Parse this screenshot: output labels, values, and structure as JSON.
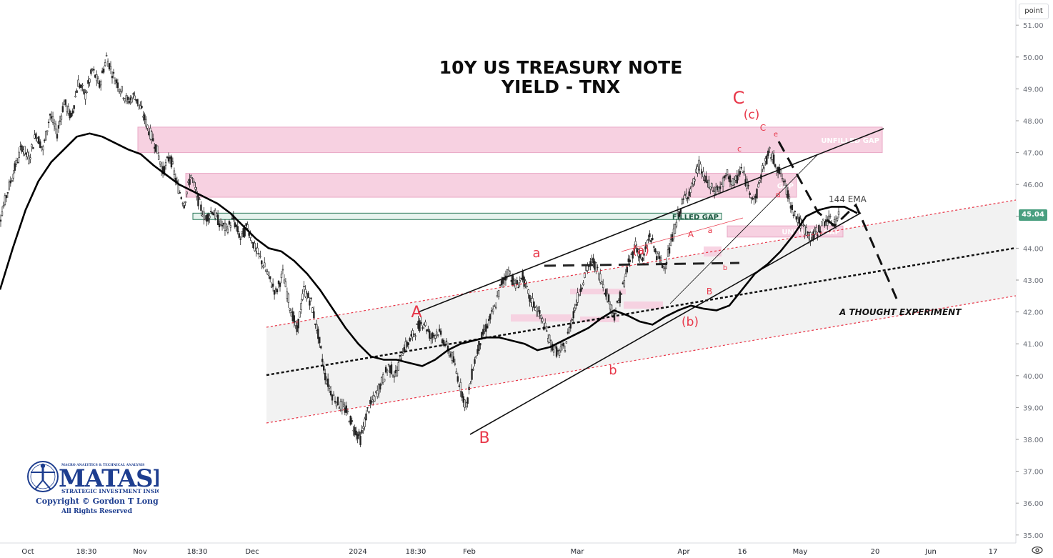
{
  "chart_data": {
    "type": "candlestick-line",
    "title_line1": "10Y US TREASURY NOTE",
    "title_line2": "YIELD - TNX",
    "yaxis": {
      "unit_label": "point",
      "ylim": [
        34.8,
        51.6
      ],
      "ticks": [
        "51.00",
        "50.00",
        "49.00",
        "48.00",
        "47.00",
        "46.00",
        "45.00",
        "44.00",
        "43.00",
        "42.00",
        "41.00",
        "40.00",
        "39.00",
        "38.00",
        "37.00",
        "36.00",
        "35.00"
      ],
      "last_value": "45.04"
    },
    "xaxis": {
      "ticks": [
        "Oct",
        "18:30",
        "Nov",
        "18:30",
        "Dec",
        "2024",
        "18:30",
        "Feb",
        "Mar",
        "Apr",
        "16",
        "May",
        "20",
        "Jun",
        "17"
      ]
    },
    "zones": [
      {
        "kind": "pink",
        "from": 47.0,
        "to": 47.8,
        "label": "UNFILLED GAP"
      },
      {
        "kind": "pink",
        "from": 45.6,
        "to": 46.35,
        "label": "GAP"
      },
      {
        "kind": "green",
        "from": 44.9,
        "to": 45.1,
        "label": "FILLED GAP"
      },
      {
        "kind": "pink",
        "from": 44.35,
        "to": 44.7,
        "label": "UNFILLED GAP"
      }
    ],
    "ema_label": "144 EMA",
    "annotation": "A THOUGHT EXPERIMENT",
    "wave_labels": [
      "A",
      "B",
      "C",
      "a",
      "b",
      "c",
      "d",
      "e",
      "(a)",
      "(b)",
      "(c)"
    ],
    "price_series": [
      45.0,
      45.8,
      46.5,
      47.2,
      46.8,
      47.6,
      47.1,
      48.2,
      47.6,
      48.6,
      48.1,
      49.2,
      48.8,
      49.6,
      49.1,
      50.0,
      49.4,
      49.0,
      48.6,
      48.8,
      48.3,
      47.7,
      47.2,
      46.4,
      46.9,
      46.0,
      45.4,
      46.3,
      45.5,
      44.9,
      45.2,
      44.8,
      44.6,
      44.9,
      44.3,
      44.7,
      44.0,
      43.6,
      43.1,
      42.6,
      43.2,
      42.2,
      41.4,
      42.7,
      42.3,
      41.3,
      40.0,
      39.4,
      39.1,
      38.9,
      38.4,
      38.0,
      38.9,
      39.3,
      39.8,
      40.3,
      40.0,
      40.8,
      41.1,
      41.5,
      41.7,
      41.2,
      41.4,
      41.0,
      40.6,
      39.8,
      39.0,
      40.3,
      41.1,
      41.6,
      42.1,
      42.9,
      43.3,
      42.8,
      43.1,
      42.4,
      42.1,
      41.6,
      41.0,
      40.7,
      40.9,
      41.8,
      42.6,
      43.3,
      43.6,
      43.1,
      42.5,
      41.9,
      42.6,
      43.5,
      44.1,
      43.6,
      44.4,
      43.8,
      43.4,
      44.1,
      45.0,
      45.6,
      45.9,
      46.6,
      46.1,
      45.8,
      45.9,
      46.3,
      46.0,
      46.5,
      45.9,
      45.5,
      46.5,
      47.0,
      46.6,
      46.1,
      45.4,
      44.9,
      44.6,
      44.3,
      44.6,
      44.9,
      44.8,
      45.04
    ],
    "ema_series": [
      42.7,
      44.0,
      45.2,
      46.1,
      46.7,
      47.1,
      47.5,
      47.6,
      47.5,
      47.3,
      47.1,
      46.95,
      46.6,
      46.3,
      46.0,
      45.8,
      45.6,
      45.4,
      45.1,
      44.7,
      44.3,
      44.0,
      43.9,
      43.6,
      43.2,
      42.7,
      42.1,
      41.5,
      41.0,
      40.6,
      40.5,
      40.5,
      40.4,
      40.3,
      40.5,
      40.8,
      41.0,
      41.1,
      41.2,
      41.2,
      41.1,
      41.0,
      40.8,
      40.9,
      41.1,
      41.3,
      41.5,
      41.8,
      42.05,
      41.9,
      41.7,
      41.6,
      41.85,
      42.05,
      42.2,
      42.1,
      42.05,
      42.2,
      42.7,
      43.2,
      43.5,
      43.9,
      44.4,
      45.0,
      45.2,
      45.3,
      45.3,
      45.1
    ]
  }
}
